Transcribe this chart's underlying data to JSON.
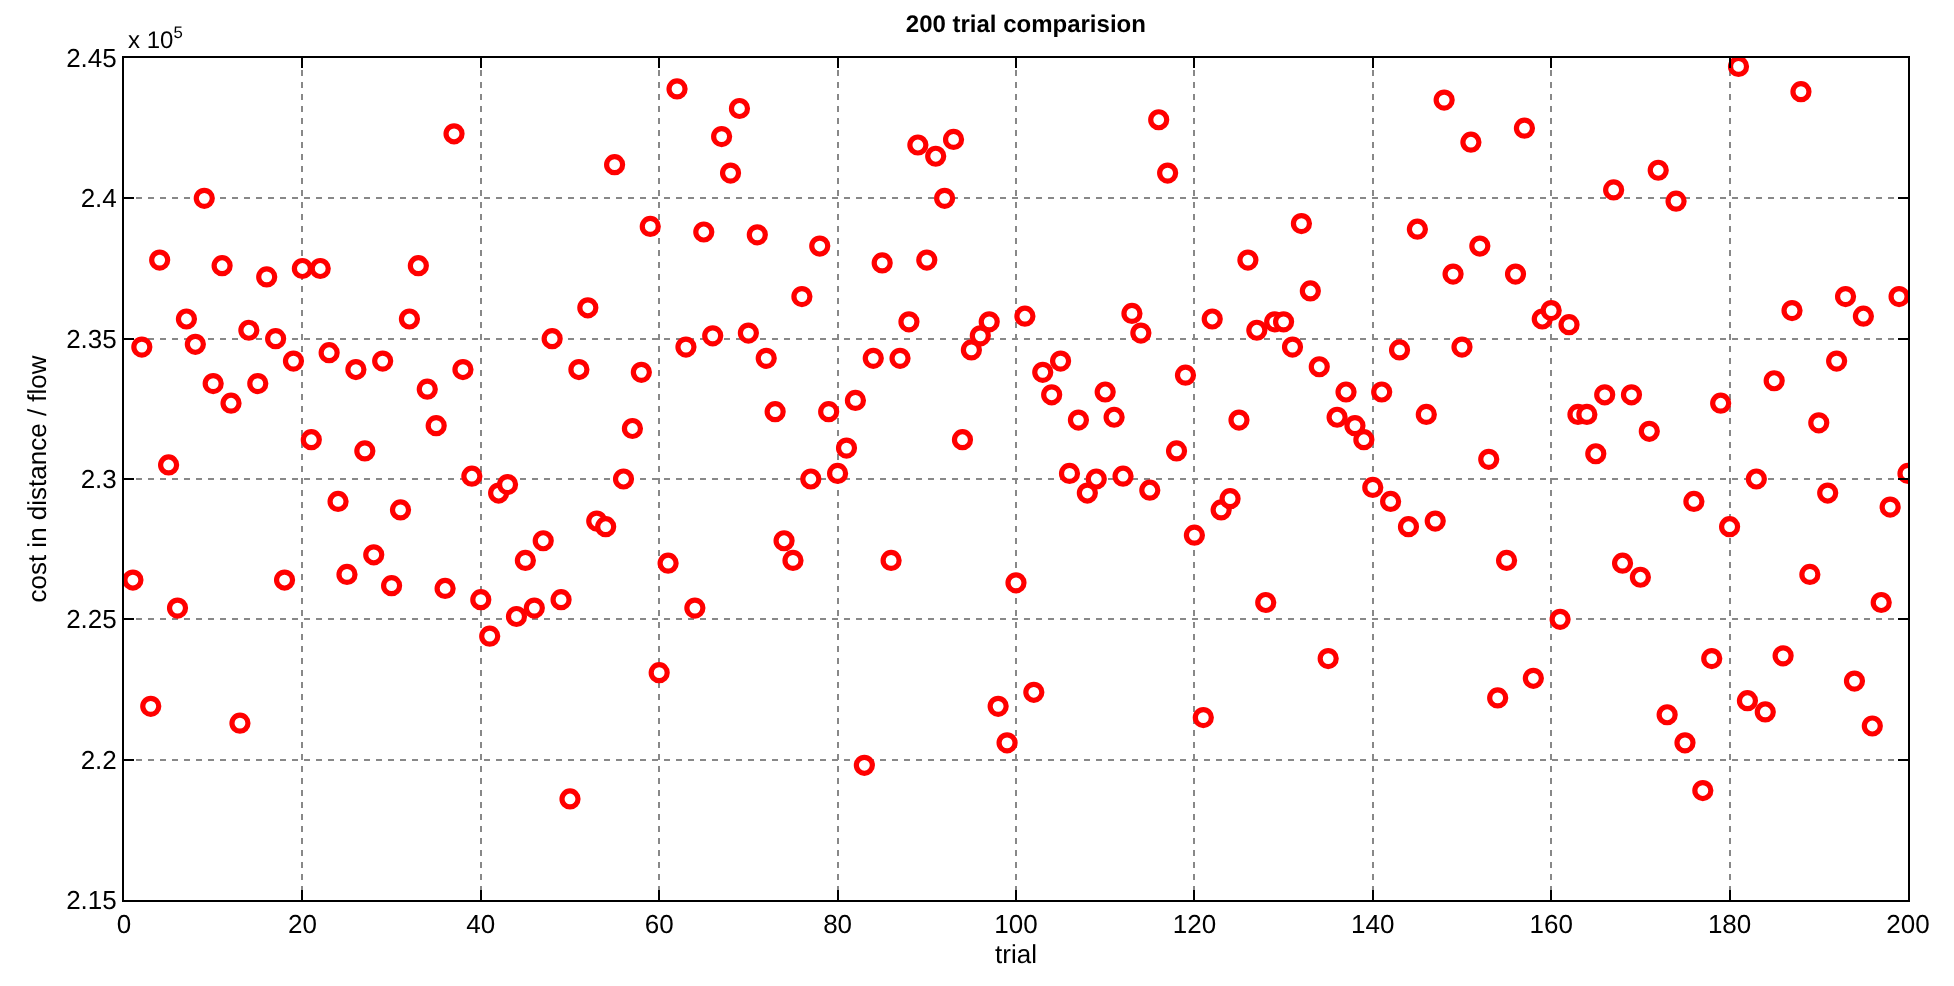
{
  "chart_data": {
    "type": "scatter",
    "title": "200 trial comparision",
    "xlabel": "trial",
    "ylabel": "cost in distance / flow",
    "annotations": [
      "x 10$^{5}$"
    ],
    "x": [
      1,
      2,
      3,
      4,
      5,
      6,
      7,
      8,
      9,
      10,
      11,
      12,
      13,
      14,
      15,
      16,
      17,
      18,
      19,
      20,
      21,
      22,
      23,
      24,
      25,
      26,
      27,
      28,
      29,
      30,
      31,
      32,
      33,
      34,
      35,
      36,
      37,
      38,
      39,
      40,
      41,
      42,
      43,
      44,
      45,
      46,
      47,
      48,
      49,
      50,
      51,
      52,
      53,
      54,
      55,
      56,
      57,
      58,
      59,
      60,
      61,
      62,
      63,
      64,
      65,
      66,
      67,
      68,
      69,
      70,
      71,
      72,
      73,
      74,
      75,
      76,
      77,
      78,
      79,
      80,
      81,
      82,
      83,
      84,
      85,
      86,
      87,
      88,
      89,
      90,
      91,
      92,
      93,
      94,
      95,
      96,
      97,
      98,
      99,
      100,
      101,
      102,
      103,
      104,
      105,
      106,
      107,
      108,
      109,
      110,
      111,
      112,
      113,
      114,
      115,
      116,
      117,
      118,
      119,
      120,
      121,
      122,
      123,
      124,
      125,
      126,
      127,
      128,
      129,
      130,
      131,
      132,
      133,
      134,
      135,
      136,
      137,
      138,
      139,
      140,
      141,
      142,
      143,
      144,
      145,
      146,
      147,
      148,
      149,
      150,
      151,
      152,
      153,
      154,
      155,
      156,
      157,
      158,
      159,
      160,
      161,
      162,
      163,
      164,
      165,
      166,
      167,
      168,
      169,
      170,
      171,
      172,
      173,
      174,
      175,
      176,
      177,
      178,
      179,
      180,
      181,
      182,
      183,
      184,
      185,
      186,
      187,
      188,
      189,
      190,
      191,
      192,
      193,
      194,
      195,
      196,
      197,
      198,
      199,
      200
    ],
    "series": [
      {
        "color": "#ff0000",
        "values": [
          2.264,
          2.347,
          2.219,
          2.378,
          2.305,
          2.254,
          2.357,
          2.348,
          2.4,
          2.334,
          2.376,
          2.327,
          2.213,
          2.353,
          2.334,
          2.372,
          2.35,
          2.264,
          2.342,
          2.375,
          2.314,
          2.375,
          2.345,
          2.292,
          2.266,
          2.339,
          2.31,
          2.273,
          2.342,
          2.262,
          2.289,
          2.357,
          2.376,
          2.332,
          2.319,
          2.261,
          2.423,
          2.339,
          2.301,
          2.257,
          2.244,
          2.295,
          2.298,
          2.251,
          2.271,
          2.254,
          2.278,
          2.35,
          2.257,
          2.186,
          2.339,
          2.361,
          2.285,
          2.283,
          2.412,
          2.3,
          2.318,
          2.338,
          2.39,
          2.231,
          2.27,
          2.439,
          2.347,
          2.254,
          2.388,
          2.351,
          2.422,
          2.409,
          2.432,
          2.352,
          2.387,
          2.343,
          2.324,
          2.278,
          2.271,
          2.365,
          2.3,
          2.383,
          2.324,
          2.302,
          2.311,
          2.328,
          2.198,
          2.343,
          2.377,
          2.271,
          2.343,
          2.356,
          2.419,
          2.378,
          2.415,
          2.4,
          2.421,
          2.314,
          2.346,
          2.351,
          2.356,
          2.219,
          2.206,
          2.263,
          2.358,
          2.224,
          2.338,
          2.33,
          2.342,
          2.302,
          2.321,
          2.295,
          2.3,
          2.331,
          2.322,
          2.301,
          2.359,
          2.352,
          2.296,
          2.428,
          2.409,
          2.31,
          2.337,
          2.28,
          2.215,
          2.357,
          2.289,
          2.293,
          2.321,
          2.378,
          2.353,
          2.256,
          2.356,
          2.356,
          2.347,
          2.391,
          2.367,
          2.34,
          2.236,
          2.322,
          2.331,
          2.319,
          2.314,
          2.297,
          2.331,
          2.292,
          2.346,
          2.283,
          2.389,
          2.323,
          2.285,
          2.435,
          2.373,
          2.347,
          2.42,
          2.383,
          2.307,
          2.222,
          2.271,
          2.373,
          2.425,
          2.229,
          2.357,
          2.36,
          2.25,
          2.355,
          2.323,
          2.323,
          2.309,
          2.33,
          2.403,
          2.27,
          2.33,
          2.265,
          2.317,
          2.41,
          2.216,
          2.399,
          2.206,
          2.292,
          2.189,
          2.236,
          2.327,
          2.283,
          2.447,
          2.221,
          2.3,
          2.217,
          2.335,
          2.237,
          2.36,
          2.438,
          2.266,
          2.32,
          2.295,
          2.342,
          2.365,
          2.228,
          2.358,
          2.212,
          2.256,
          2.29,
          2.365,
          2.302
        ]
      }
    ],
    "xlim": [
      0,
      200
    ],
    "xticks": [
      0,
      20,
      40,
      60,
      80,
      100,
      120,
      140,
      160,
      180,
      200
    ],
    "ylim": [
      2.15,
      2.45
    ],
    "yticks": [
      2.15,
      2.2,
      2.25,
      2.3,
      2.35,
      2.4,
      2.45
    ],
    "grid": true,
    "marker": "circle"
  }
}
